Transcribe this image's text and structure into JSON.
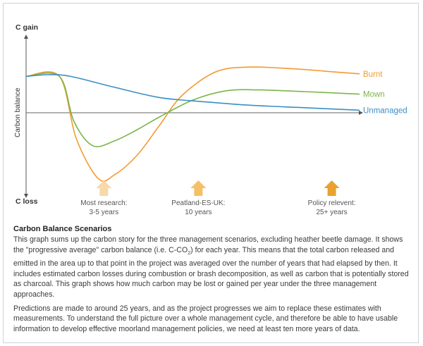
{
  "chart_data": {
    "type": "line",
    "y_axis": {
      "top_label": "C gain",
      "bottom_label": "C loss",
      "title": "Carbon balance"
    },
    "ylim": [
      -1,
      1
    ],
    "xlim": [
      0,
      30
    ],
    "grid": false,
    "baseline": 0,
    "series": [
      {
        "name": "Burnt",
        "color": "#f39a32",
        "points": [
          [
            0,
            0.43
          ],
          [
            3,
            0.43
          ],
          [
            4.5,
            -0.3
          ],
          [
            6.5,
            -0.78
          ],
          [
            8,
            -0.73
          ],
          [
            10,
            -0.5
          ],
          [
            12,
            -0.15
          ],
          [
            14,
            0.2
          ],
          [
            17,
            0.48
          ],
          [
            20,
            0.54
          ],
          [
            24,
            0.52
          ],
          [
            28,
            0.48
          ],
          [
            30,
            0.46
          ]
        ]
      },
      {
        "name": "Mown",
        "color": "#7ab648",
        "points": [
          [
            0,
            0.43
          ],
          [
            3,
            0.43
          ],
          [
            4.3,
            -0.1
          ],
          [
            6,
            -0.39
          ],
          [
            8,
            -0.33
          ],
          [
            10,
            -0.2
          ],
          [
            12,
            -0.05
          ],
          [
            15,
            0.15
          ],
          [
            18,
            0.26
          ],
          [
            21,
            0.27
          ],
          [
            25,
            0.25
          ],
          [
            30,
            0.22
          ]
        ]
      },
      {
        "name": "Unmanaged",
        "color": "#3a8fc4",
        "points": [
          [
            0,
            0.43
          ],
          [
            2,
            0.45
          ],
          [
            4,
            0.43
          ],
          [
            8,
            0.3
          ],
          [
            12,
            0.18
          ],
          [
            16,
            0.13
          ],
          [
            20,
            0.09
          ],
          [
            25,
            0.06
          ],
          [
            30,
            0.03
          ]
        ]
      }
    ],
    "annotations": [
      {
        "x": 7,
        "label_line1": "Most research:",
        "label_line2": "3-5 years",
        "arrow_color": "#f7d9aa"
      },
      {
        "x": 15.5,
        "label_line1": "Peatland-ES-UK:",
        "label_line2": "10 years",
        "arrow_color": "#f5c064"
      },
      {
        "x": 27.5,
        "label_line1": "Policy relevent:",
        "label_line2": "25+ years",
        "arrow_color": "#e9a230"
      }
    ]
  },
  "description": {
    "title": "Carbon Balance Scenarios",
    "paragraph1_part1": "This graph sums up the carbon story for the three management scenarios, excluding heather beetle damage. It shows the \"progressive average\" carbon balance (i.e. C-CO",
    "paragraph1_sub": "2",
    "paragraph1_part2": ") for each year. This means that the total carbon released and emitted in the area up to that point in the project was averaged over the number of years that had elapsed by then. It includes estimated carbon losses during combustion or brash decomposition, as well as carbon that is potentially stored as charcoal. This graph shows how much carbon may be lost or gained per year under the three management approaches.",
    "paragraph2": "Predictions are made to around 25 years, and as the project progresses we aim to replace these estimates with measurements. To understand the full picture over a whole management cycle, and therefore be able to have usable information to develop effective moorland management policies, we need at least ten more years of data."
  }
}
